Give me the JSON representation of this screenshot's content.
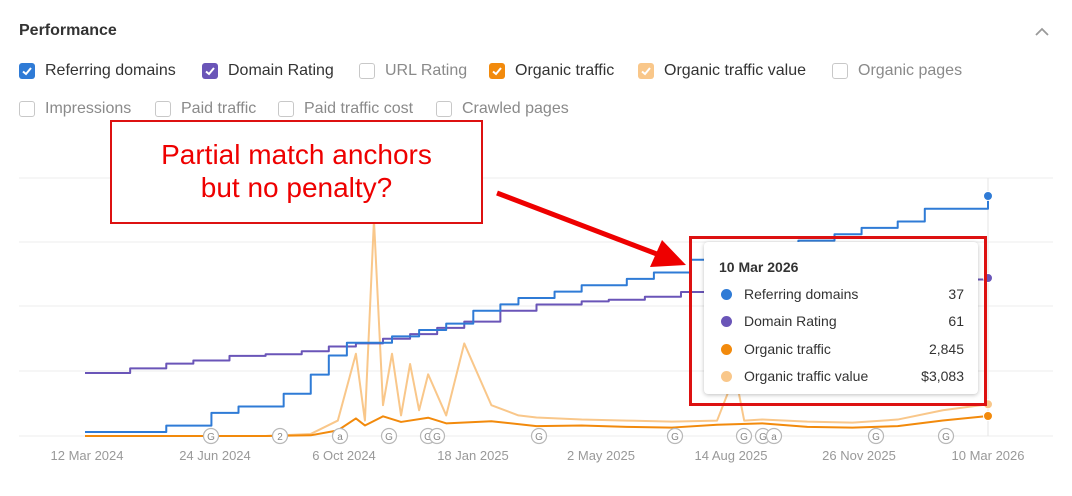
{
  "panel": {
    "title": "Performance"
  },
  "metrics": [
    {
      "label": "Referring domains",
      "checked": true,
      "color": "#2f7bd6"
    },
    {
      "label": "Domain Rating",
      "checked": true,
      "color": "#6a55b8"
    },
    {
      "label": "URL Rating",
      "checked": false
    },
    {
      "label": "Organic traffic",
      "checked": true,
      "color": "#f28a0c"
    },
    {
      "label": "Organic traffic value",
      "checked": true,
      "color": "#f9c78a"
    },
    {
      "label": "Organic pages",
      "checked": false
    },
    {
      "label": "Impressions",
      "checked": false
    },
    {
      "label": "Paid traffic",
      "checked": false
    },
    {
      "label": "Paid traffic cost",
      "checked": false
    },
    {
      "label": "Crawled pages",
      "checked": false
    }
  ],
  "annotation": {
    "line1": "Partial match anchors",
    "line2": "but no penalty?"
  },
  "tooltip": {
    "date": "10 Mar 2026",
    "rows": [
      {
        "name": "Referring domains",
        "value": "37",
        "color": "#2f7bd6"
      },
      {
        "name": "Domain Rating",
        "value": "61",
        "color": "#6a55b8"
      },
      {
        "name": "Organic traffic",
        "value": "2,845",
        "color": "#f28a0c"
      },
      {
        "name": "Organic traffic value",
        "value": "$3,083",
        "color": "#f9c78a"
      }
    ]
  },
  "chart_data": {
    "type": "line",
    "x_tick_labels": [
      "12 Mar 2024",
      "24 Jun 2024",
      "6 Oct 2024",
      "18 Jan 2025",
      "2 May 2025",
      "14 Aug 2025",
      "26 Nov 2025",
      "10 Mar 2026"
    ],
    "grid": true,
    "event_markers": [
      "G",
      "2",
      "a",
      "G",
      "G",
      "G",
      "G",
      "G",
      "G",
      "G",
      "a",
      "G",
      "G"
    ],
    "series": [
      {
        "name": "Referring domains",
        "color": "#2f7bd6",
        "x": [
          0,
          0.04,
          0.09,
          0.12,
          0.14,
          0.17,
          0.19,
          0.22,
          0.25,
          0.27,
          0.29,
          0.31,
          0.34,
          0.37,
          0.4,
          0.43,
          0.46,
          0.48,
          0.52,
          0.55,
          0.6,
          0.63,
          0.67,
          0.71,
          0.75,
          0.79,
          0.83,
          0.86,
          0.9,
          0.93,
          0.96,
          1.0
        ],
        "values": [
          0,
          0,
          1,
          1,
          3,
          4,
          4,
          6,
          9,
          12,
          14,
          14,
          15,
          16,
          17,
          19,
          20,
          21,
          22,
          23,
          24,
          25,
          27,
          28,
          29,
          30,
          31,
          32,
          33,
          35,
          35,
          37
        ]
      },
      {
        "name": "Domain Rating",
        "color": "#6a55b8",
        "x": [
          0,
          0.05,
          0.09,
          0.12,
          0.16,
          0.2,
          0.24,
          0.27,
          0.3,
          0.33,
          0.36,
          0.39,
          0.42,
          0.46,
          0.5,
          0.55,
          0.58,
          0.62,
          0.66,
          0.7,
          0.75,
          0.8,
          0.85,
          0.9,
          0.95,
          1.0
        ],
        "values": [
          0,
          3,
          6,
          8,
          11,
          12,
          14,
          17,
          19,
          22,
          25,
          29,
          33,
          40,
          44,
          46,
          47,
          49,
          52,
          55,
          57,
          58,
          59,
          60,
          60,
          61
        ]
      },
      {
        "name": "Organic traffic",
        "color": "#f28a0c",
        "x": [
          0,
          0.1,
          0.2,
          0.25,
          0.28,
          0.3,
          0.31,
          0.33,
          0.35,
          0.38,
          0.4,
          0.45,
          0.5,
          0.55,
          0.6,
          0.65,
          0.7,
          0.75,
          0.8,
          0.85,
          0.9,
          0.95,
          1.0
        ],
        "values": [
          0,
          0,
          0,
          100,
          800,
          2500,
          1500,
          2800,
          2000,
          2600,
          1800,
          2100,
          1400,
          1500,
          1300,
          1200,
          1600,
          1800,
          1300,
          1200,
          1400,
          2200,
          2845
        ]
      },
      {
        "name": "Organic traffic value",
        "color": "#f9c78a",
        "x": [
          0,
          0.1,
          0.2,
          0.25,
          0.28,
          0.3,
          0.31,
          0.32,
          0.33,
          0.34,
          0.35,
          0.36,
          0.37,
          0.38,
          0.4,
          0.42,
          0.45,
          0.48,
          0.5,
          0.55,
          0.6,
          0.65,
          0.7,
          0.72,
          0.73,
          0.75,
          0.8,
          0.85,
          0.9,
          0.95,
          1.0
        ],
        "values": [
          0,
          0,
          0,
          200,
          1500,
          8000,
          1500,
          21000,
          3000,
          8000,
          2000,
          7000,
          2500,
          6000,
          2000,
          9000,
          3000,
          2000,
          1800,
          1600,
          1500,
          1400,
          1500,
          6000,
          1500,
          1600,
          1400,
          1300,
          1600,
          2500,
          3083
        ]
      }
    ]
  }
}
